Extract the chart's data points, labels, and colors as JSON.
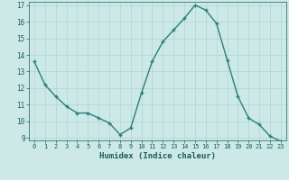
{
  "x": [
    0,
    1,
    2,
    3,
    4,
    5,
    6,
    7,
    8,
    9,
    10,
    11,
    12,
    13,
    14,
    15,
    16,
    17,
    18,
    19,
    20,
    21,
    22,
    23
  ],
  "y": [
    13.6,
    12.2,
    11.5,
    10.9,
    10.5,
    10.5,
    10.2,
    9.9,
    9.2,
    9.6,
    11.7,
    13.6,
    14.8,
    15.5,
    16.2,
    17.0,
    16.7,
    15.9,
    13.7,
    11.5,
    10.2,
    9.8,
    9.1,
    8.8
  ],
  "xlabel": "Humidex (Indice chaleur)",
  "ylim": [
    9,
    17
  ],
  "xlim": [
    -0.5,
    23.5
  ],
  "yticks": [
    9,
    10,
    11,
    12,
    13,
    14,
    15,
    16,
    17
  ],
  "xticks": [
    0,
    1,
    2,
    3,
    4,
    5,
    6,
    7,
    8,
    9,
    10,
    11,
    12,
    13,
    14,
    15,
    16,
    17,
    18,
    19,
    20,
    21,
    22,
    23
  ],
  "line_color": "#2e7d7a",
  "bg_color": "#cce9e7",
  "grid_color": "#afd4d2",
  "text_color": "#1a5c5a",
  "marker": "+"
}
